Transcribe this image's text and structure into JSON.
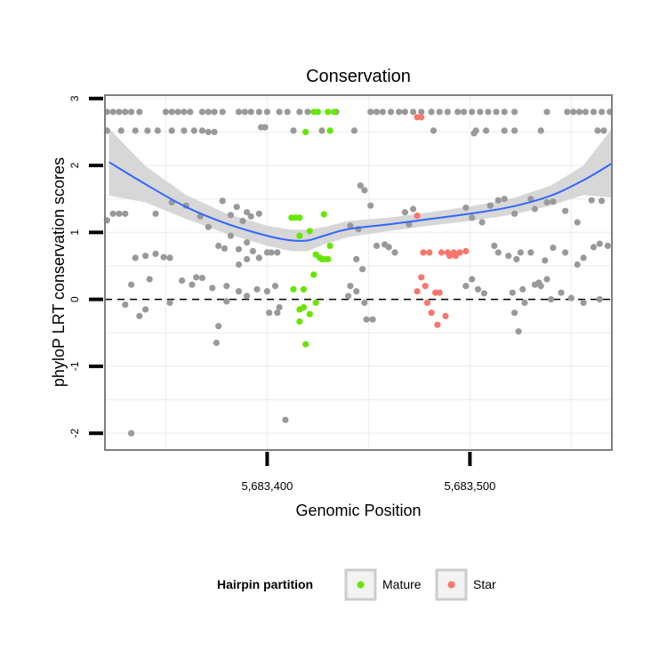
{
  "chart_data": {
    "type": "scatter",
    "title": "Conservation",
    "xlabel": "Genomic Position",
    "ylabel": "phyloP LRT conservation scores",
    "xlim": [
      5683320,
      5683570
    ],
    "ylim": [
      -2.25,
      3.05
    ],
    "x_ticks": [
      5683400,
      5683500
    ],
    "x_tick_labels": [
      "5,683,400",
      "5,683,500"
    ],
    "y_ticks": [
      -2,
      -1,
      0,
      1,
      2,
      3
    ],
    "y_tick_labels": [
      "-2",
      "-1",
      "0",
      "1",
      "2",
      "3"
    ],
    "reference_line": {
      "y": 0,
      "style": "dashed"
    },
    "grid": true,
    "legend": {
      "title": "Hairpin partition",
      "placement": "bottom",
      "items": [
        {
          "label": "Mature",
          "color": "#66e600"
        },
        {
          "label": "Star",
          "color": "#f8766d"
        }
      ]
    },
    "colors": {
      "other": "#999999",
      "mature": "#66e600",
      "star": "#f8766d",
      "smooth": "#3366ff",
      "band": "#d3d3d3"
    },
    "series": [
      {
        "name": "",
        "color": "#999999",
        "points": [
          [
            5683321,
            2.8
          ],
          [
            5683324,
            2.8
          ],
          [
            5683327,
            2.8
          ],
          [
            5683330,
            2.8
          ],
          [
            5683333,
            2.8
          ],
          [
            5683337,
            2.8
          ],
          [
            5683350,
            2.8
          ],
          [
            5683353,
            2.8
          ],
          [
            5683356,
            2.8
          ],
          [
            5683359,
            2.8
          ],
          [
            5683362,
            2.8
          ],
          [
            5683368,
            2.8
          ],
          [
            5683371,
            2.8
          ],
          [
            5683374,
            2.8
          ],
          [
            5683378,
            2.8
          ],
          [
            5683386,
            2.8
          ],
          [
            5683389,
            2.8
          ],
          [
            5683392,
            2.8
          ],
          [
            5683396,
            2.8
          ],
          [
            5683400,
            2.8
          ],
          [
            5683406,
            2.8
          ],
          [
            5683410,
            2.8
          ],
          [
            5683416,
            2.8
          ],
          [
            5683420,
            2.8
          ],
          [
            5683434,
            2.8
          ],
          [
            5683451,
            2.8
          ],
          [
            5683454,
            2.8
          ],
          [
            5683457,
            2.8
          ],
          [
            5683461,
            2.8
          ],
          [
            5683465,
            2.8
          ],
          [
            5683468,
            2.8
          ],
          [
            5683472,
            2.8
          ],
          [
            5683476,
            2.8
          ],
          [
            5683481,
            2.8
          ],
          [
            5683485,
            2.8
          ],
          [
            5683489,
            2.8
          ],
          [
            5683494,
            2.8
          ],
          [
            5683497,
            2.8
          ],
          [
            5683501,
            2.8
          ],
          [
            5683505,
            2.8
          ],
          [
            5683509,
            2.8
          ],
          [
            5683513,
            2.8
          ],
          [
            5683517,
            2.8
          ],
          [
            5683522,
            2.8
          ],
          [
            5683538,
            2.8
          ],
          [
            5683548,
            2.8
          ],
          [
            5683551,
            2.8
          ],
          [
            5683554,
            2.8
          ],
          [
            5683557,
            2.8
          ],
          [
            5683561,
            2.8
          ],
          [
            5683565,
            2.8
          ],
          [
            5683569,
            2.8
          ],
          [
            5683321,
            2.52
          ],
          [
            5683328,
            2.52
          ],
          [
            5683335,
            2.52
          ],
          [
            5683341,
            2.52
          ],
          [
            5683346,
            2.52
          ],
          [
            5683353,
            2.52
          ],
          [
            5683359,
            2.52
          ],
          [
            5683364,
            2.52
          ],
          [
            5683368,
            2.52
          ],
          [
            5683371,
            2.5
          ],
          [
            5683374,
            2.5
          ],
          [
            5683397,
            2.57
          ],
          [
            5683399,
            2.57
          ],
          [
            5683413,
            2.52
          ],
          [
            5683427,
            2.52
          ],
          [
            5683443,
            2.52
          ],
          [
            5683482,
            2.52
          ],
          [
            5683503,
            2.52
          ],
          [
            5683508,
            2.52
          ],
          [
            5683517,
            2.52
          ],
          [
            5683522,
            2.52
          ],
          [
            5683535,
            2.52
          ],
          [
            5683563,
            2.52
          ],
          [
            5683566,
            2.52
          ],
          [
            5683502,
            2.48
          ],
          [
            5683324,
            1.28
          ],
          [
            5683327,
            1.28
          ],
          [
            5683330,
            1.28
          ],
          [
            5683321,
            1.18
          ],
          [
            5683345,
            1.28
          ],
          [
            5683353,
            1.45
          ],
          [
            5683360,
            1.4
          ],
          [
            5683367,
            1.24
          ],
          [
            5683371,
            1.08
          ],
          [
            5683378,
            1.47
          ],
          [
            5683382,
            1.26
          ],
          [
            5683385,
            1.38
          ],
          [
            5683388,
            1.17
          ],
          [
            5683390,
            1.3
          ],
          [
            5683392,
            1.24
          ],
          [
            5683396,
            1.28
          ],
          [
            5683382,
            0.95
          ],
          [
            5683390,
            0.85
          ],
          [
            5683393,
            0.72
          ],
          [
            5683379,
            0.76
          ],
          [
            5683376,
            0.8
          ],
          [
            5683386,
            0.75
          ],
          [
            5683396,
            0.62
          ],
          [
            5683390,
            0.6
          ],
          [
            5683386,
            0.52
          ],
          [
            5683400,
            0.7
          ],
          [
            5683402,
            0.7
          ],
          [
            5683405,
            0.7
          ],
          [
            5683335,
            0.62
          ],
          [
            5683340,
            0.65
          ],
          [
            5683342,
            0.3
          ],
          [
            5683345,
            0.68
          ],
          [
            5683349,
            0.63
          ],
          [
            5683352,
            0.62
          ],
          [
            5683358,
            0.28
          ],
          [
            5683365,
            0.33
          ],
          [
            5683368,
            0.32
          ],
          [
            5683373,
            0.17
          ],
          [
            5683363,
            0.22
          ],
          [
            5683380,
            0.2
          ],
          [
            5683386,
            0.12
          ],
          [
            5683380,
            -0.03
          ],
          [
            5683333,
            0.22
          ],
          [
            5683330,
            -0.08
          ],
          [
            5683340,
            -0.15
          ],
          [
            5683352,
            -0.05
          ],
          [
            5683337,
            -0.25
          ],
          [
            5683390,
            0.05
          ],
          [
            5683395,
            0.15
          ],
          [
            5683400,
            0.12
          ],
          [
            5683404,
            0.2
          ],
          [
            5683406,
            -0.12
          ],
          [
            5683401,
            -0.2
          ],
          [
            5683405,
            -0.2
          ],
          [
            5683376,
            -0.4
          ],
          [
            5683375,
            -0.65
          ],
          [
            5683333,
            -2.0
          ],
          [
            5683409,
            -1.8
          ],
          [
            5683441,
            1.1
          ],
          [
            5683445,
            1.05
          ],
          [
            5683446,
            1.7
          ],
          [
            5683448,
            1.63
          ],
          [
            5683451,
            1.4
          ],
          [
            5683454,
            0.8
          ],
          [
            5683458,
            0.82
          ],
          [
            5683460,
            0.78
          ],
          [
            5683463,
            0.7
          ],
          [
            5683468,
            1.3
          ],
          [
            5683470,
            1.12
          ],
          [
            5683472,
            1.35
          ],
          [
            5683444,
            0.6
          ],
          [
            5683447,
            0.45
          ],
          [
            5683441,
            0.2
          ],
          [
            5683444,
            0.12
          ],
          [
            5683448,
            -0.05
          ],
          [
            5683440,
            0.05
          ],
          [
            5683449,
            -0.3
          ],
          [
            5683452,
            -0.3
          ],
          [
            5683498,
            1.37
          ],
          [
            5683501,
            1.22
          ],
          [
            5683506,
            1.15
          ],
          [
            5683510,
            1.4
          ],
          [
            5683514,
            1.48
          ],
          [
            5683517,
            1.5
          ],
          [
            5683522,
            1.28
          ],
          [
            5683532,
            1.35
          ],
          [
            5683538,
            1.45
          ],
          [
            5683541,
            1.46
          ],
          [
            5683547,
            1.32
          ],
          [
            5683530,
            1.5
          ],
          [
            5683553,
            1.15
          ],
          [
            5683560,
            1.48
          ],
          [
            5683565,
            1.47
          ],
          [
            5683512,
            0.8
          ],
          [
            5683514,
            0.7
          ],
          [
            5683519,
            0.65
          ],
          [
            5683523,
            0.6
          ],
          [
            5683525,
            0.7
          ],
          [
            5683530,
            0.7
          ],
          [
            5683537,
            0.58
          ],
          [
            5683541,
            0.77
          ],
          [
            5683547,
            0.7
          ],
          [
            5683553,
            0.52
          ],
          [
            5683556,
            0.62
          ],
          [
            5683561,
            0.78
          ],
          [
            5683564,
            0.83
          ],
          [
            5683568,
            0.8
          ],
          [
            5683545,
            0.1
          ],
          [
            5683550,
            0.02
          ],
          [
            5683556,
            -0.05
          ],
          [
            5683564,
            0.0
          ],
          [
            5683538,
            0.3
          ],
          [
            5683532,
            0.22
          ],
          [
            5683534,
            0.25
          ],
          [
            5683521,
            0.1
          ],
          [
            5683526,
            0.15
          ],
          [
            5683535,
            0.2
          ],
          [
            5683540,
            0.0
          ],
          [
            5683527,
            -0.05
          ],
          [
            5683522,
            -0.2
          ],
          [
            5683524,
            -0.48
          ],
          [
            5683498,
            0.2
          ],
          [
            5683501,
            0.3
          ],
          [
            5683504,
            0.15
          ],
          [
            5683507,
            0.09
          ]
        ]
      },
      {
        "name": "Mature",
        "color": "#66e600",
        "points": [
          [
            5683423,
            2.8
          ],
          [
            5683425,
            2.8
          ],
          [
            5683430,
            2.8
          ],
          [
            5683433,
            2.8
          ],
          [
            5683419,
            2.5
          ],
          [
            5683431,
            2.52
          ],
          [
            5683412,
            1.22
          ],
          [
            5683414,
            1.22
          ],
          [
            5683416,
            1.22
          ],
          [
            5683428,
            1.27
          ],
          [
            5683416,
            0.95
          ],
          [
            5683421,
            1.02
          ],
          [
            5683424,
            0.67
          ],
          [
            5683426,
            0.62
          ],
          [
            5683428,
            0.6
          ],
          [
            5683430,
            0.6
          ],
          [
            5683431,
            0.8
          ],
          [
            5683427,
            0.6
          ],
          [
            5683423,
            0.37
          ],
          [
            5683413,
            0.15
          ],
          [
            5683418,
            0.15
          ],
          [
            5683418,
            -0.12
          ],
          [
            5683416,
            -0.15
          ],
          [
            5683424,
            -0.05
          ],
          [
            5683421,
            -0.22
          ],
          [
            5683416,
            -0.33
          ],
          [
            5683419,
            -0.67
          ]
        ]
      },
      {
        "name": "Star",
        "color": "#f8766d",
        "points": [
          [
            5683474,
            2.72
          ],
          [
            5683476,
            2.72
          ],
          [
            5683474,
            1.25
          ],
          [
            5683477,
            0.7
          ],
          [
            5683480,
            0.7
          ],
          [
            5683486,
            0.7
          ],
          [
            5683489,
            0.7
          ],
          [
            5683492,
            0.7
          ],
          [
            5683495,
            0.7
          ],
          [
            5683498,
            0.72
          ],
          [
            5683490,
            0.65
          ],
          [
            5683493,
            0.65
          ],
          [
            5683476,
            0.33
          ],
          [
            5683478,
            0.2
          ],
          [
            5683483,
            0.1
          ],
          [
            5683485,
            0.1
          ],
          [
            5683474,
            0.12
          ],
          [
            5683479,
            -0.05
          ],
          [
            5683481,
            -0.2
          ],
          [
            5683488,
            -0.25
          ],
          [
            5683484,
            -0.38
          ]
        ]
      }
    ],
    "smooth": {
      "x": [
        5683322,
        5683340,
        5683360,
        5683380,
        5683400,
        5683412,
        5683420,
        5683428,
        5683440,
        5683460,
        5683480,
        5683500,
        5683520,
        5683540,
        5683556,
        5683570
      ],
      "y": [
        2.05,
        1.72,
        1.38,
        1.13,
        0.95,
        0.88,
        0.88,
        0.95,
        1.05,
        1.12,
        1.2,
        1.28,
        1.38,
        1.55,
        1.78,
        2.03
      ],
      "ymin": [
        1.55,
        1.45,
        1.2,
        0.98,
        0.8,
        0.72,
        0.72,
        0.82,
        0.93,
        1.02,
        1.1,
        1.17,
        1.26,
        1.4,
        1.56,
        1.52
      ],
      "ymax": [
        2.55,
        1.99,
        1.56,
        1.28,
        1.1,
        1.04,
        1.04,
        1.08,
        1.17,
        1.22,
        1.3,
        1.39,
        1.5,
        1.7,
        2.0,
        2.55
      ]
    }
  }
}
